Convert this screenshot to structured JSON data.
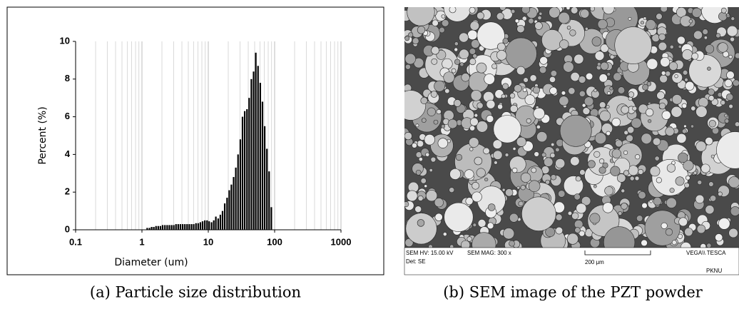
{
  "chart_data": {
    "type": "bar",
    "xscale": "log",
    "grid": true,
    "color": "#000000",
    "xlabel": "Diameter (um)",
    "ylabel": "Percent (%)",
    "xlim": [
      0.1,
      1000
    ],
    "xticks": [
      0.1,
      1,
      10,
      100,
      1000
    ],
    "ylim": [
      0,
      10
    ],
    "yticks": [
      0,
      2,
      4,
      6,
      8,
      10
    ],
    "x": [
      1.2,
      1.3,
      1.4,
      1.51,
      1.63,
      1.76,
      1.9,
      2.05,
      2.22,
      2.4,
      2.59,
      2.8,
      3.02,
      3.26,
      3.52,
      3.8,
      4.11,
      4.44,
      4.79,
      5.17,
      5.59,
      6.03,
      6.52,
      7.04,
      7.6,
      8.21,
      8.87,
      9.58,
      10.3,
      11.2,
      12.1,
      13.0,
      14.1,
      15.2,
      16.4,
      17.7,
      19.2,
      20.7,
      22.3,
      24.1,
      26.0,
      28.1,
      30.4,
      32.8,
      35.4,
      38.3,
      41.3,
      44.6,
      48.2,
      52.0,
      56.2,
      60.7,
      65.6,
      70.8,
      76.5,
      82.6,
      89.2
    ],
    "values": [
      0.1,
      0.1,
      0.15,
      0.15,
      0.2,
      0.2,
      0.2,
      0.25,
      0.25,
      0.25,
      0.25,
      0.25,
      0.25,
      0.3,
      0.3,
      0.3,
      0.3,
      0.3,
      0.3,
      0.3,
      0.3,
      0.3,
      0.35,
      0.35,
      0.4,
      0.45,
      0.5,
      0.5,
      0.45,
      0.4,
      0.5,
      0.7,
      0.6,
      0.8,
      1.0,
      1.4,
      1.7,
      2.1,
      2.4,
      2.8,
      3.3,
      4.0,
      4.8,
      6.0,
      6.3,
      6.4,
      7.0,
      8.0,
      8.4,
      9.4,
      8.7,
      7.8,
      6.8,
      5.5,
      4.3,
      3.1,
      1.2
    ],
    "caption": "(a) Particle size distribution"
  },
  "image": {
    "caption": "(b) SEM image of the PZT powder",
    "info": {
      "hv": "SEM HV: 15.00 kV",
      "mag": "SEM MAG: 300 x",
      "det": "Det: SE",
      "scale": "200 μm",
      "brand": "VEGA\\\\ TESCA",
      "lab": "PKNU"
    }
  }
}
